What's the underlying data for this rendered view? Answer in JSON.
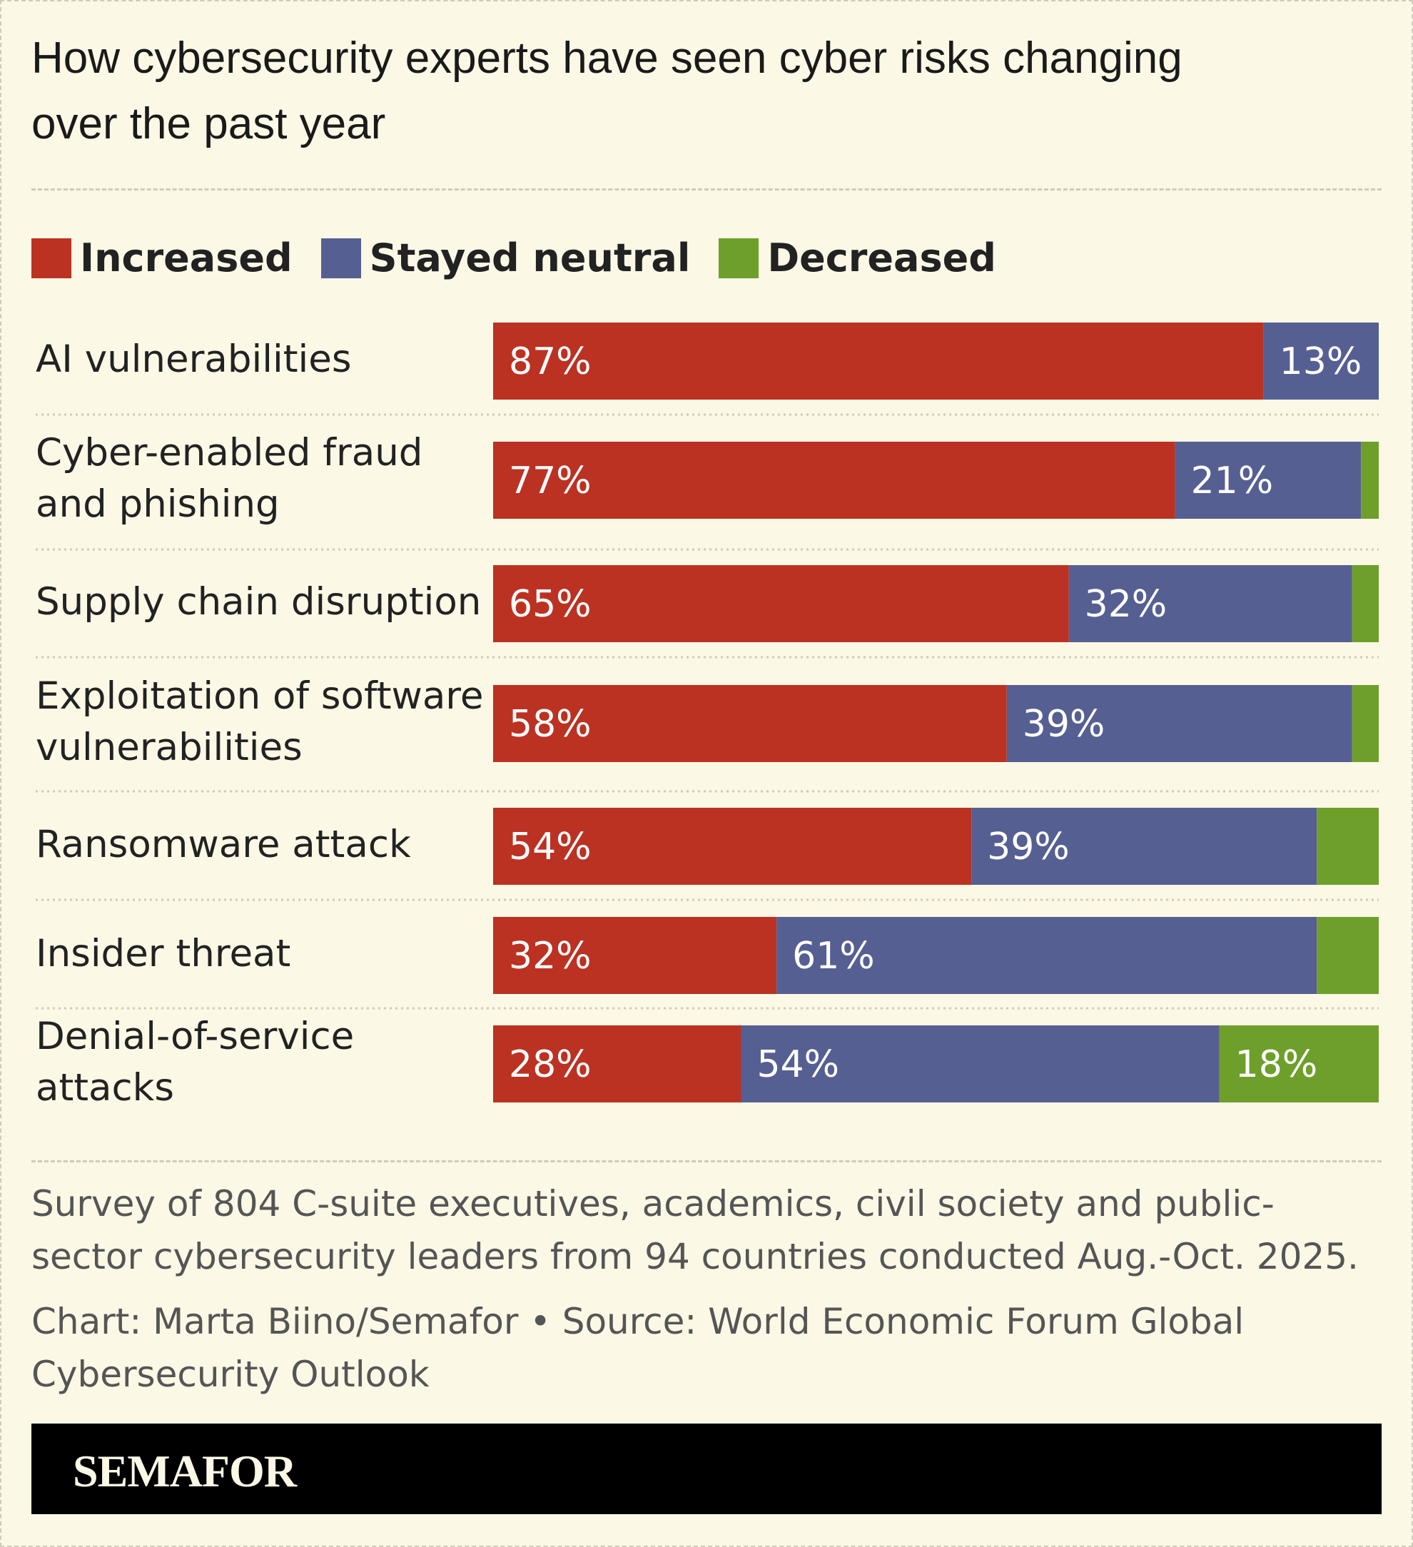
{
  "chart_data": {
    "type": "stacked-bar-horizontal",
    "title": "How cybersecurity experts have seen cyber risks changing over the past year",
    "categories": [
      "AI vulnerabilities",
      "Cyber-enabled fraud and phishing",
      "Supply chain disruption",
      "Exploitation of software vulnerabilities",
      "Ransomware attack",
      "Insider threat",
      "Denial-of-service attacks"
    ],
    "series": [
      {
        "name": "Increased",
        "color": "#bb3222",
        "values": [
          87,
          77,
          65,
          58,
          54,
          32,
          28
        ],
        "value_labels": [
          "87%",
          "77%",
          "65%",
          "58%",
          "54%",
          "32%",
          "28%"
        ]
      },
      {
        "name": "Stayed neutral",
        "color": "#565f92",
        "values": [
          13,
          21,
          32,
          39,
          39,
          61,
          54
        ],
        "value_labels": [
          "13%",
          "21%",
          "32%",
          "39%",
          "39%",
          "61%",
          "54%"
        ]
      },
      {
        "name": "Decreased",
        "color": "#6e9f2a",
        "values": [
          0,
          2,
          3,
          3,
          7,
          7,
          18
        ],
        "value_labels": [
          null,
          null,
          null,
          null,
          null,
          null,
          "18%"
        ]
      }
    ],
    "xlim": [
      0,
      100
    ],
    "note": "Survey of 804 C-suite executives, academics, civil society and public-sector cybersecurity leaders from 94 countries conducted Aug.-Oct. 2025.",
    "credit": "Chart: Marta Biino/Semafor • Source: World Economic Forum Global Cybersecurity Outlook",
    "brand": "SEMAFOR"
  }
}
